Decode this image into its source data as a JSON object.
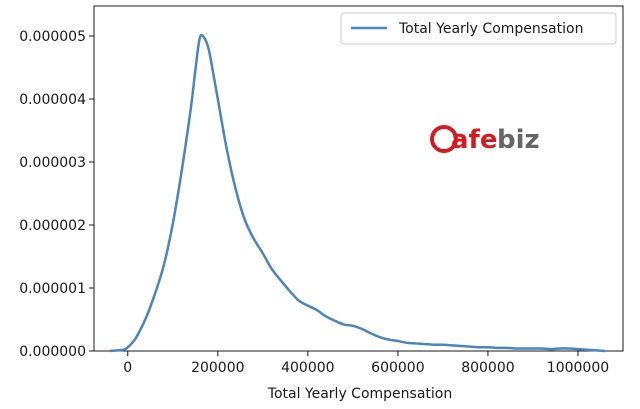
{
  "chart_data": {
    "type": "line",
    "xlabel": "Total Yearly Compensation",
    "ylabel": "",
    "xlim": [
      -75000,
      1100000
    ],
    "ylim": [
      0,
      5e-06
    ],
    "xticks": [
      0,
      200000,
      400000,
      600000,
      800000,
      1000000
    ],
    "xtick_labels": [
      "0",
      "200000",
      "400000",
      "600000",
      "800000",
      "1000000"
    ],
    "yticks": [
      0,
      1e-06,
      2e-06,
      3e-06,
      4e-06,
      5e-06
    ],
    "ytick_labels": [
      "0.000000",
      "0.000001",
      "0.000002",
      "0.000003",
      "0.000004",
      "0.000005"
    ],
    "grid": false,
    "legend_position": "top-right",
    "series": [
      {
        "name": "Total Yearly Compensation",
        "color": "#4c84be",
        "x": [
          -40000,
          -10000,
          0,
          10000,
          20000,
          40000,
          60000,
          80000,
          100000,
          120000,
          140000,
          150000,
          160000,
          170000,
          180000,
          190000,
          200000,
          220000,
          240000,
          260000,
          280000,
          300000,
          320000,
          340000,
          360000,
          380000,
          400000,
          420000,
          440000,
          460000,
          480000,
          500000,
          520000,
          540000,
          560000,
          580000,
          600000,
          620000,
          640000,
          660000,
          680000,
          700000,
          720000,
          740000,
          760000,
          780000,
          800000,
          820000,
          840000,
          860000,
          880000,
          900000,
          920000,
          940000,
          960000,
          980000,
          1000000,
          1020000,
          1040000,
          1060000
        ],
        "values": [
          0.0,
          2e-08,
          6e-08,
          1.3e-07,
          2.3e-07,
          5.2e-07,
          9e-07,
          1.36e-06,
          2.02e-06,
          2.87e-06,
          3.85e-06,
          4.45e-06,
          4.97e-06,
          4.97e-06,
          4.78e-06,
          4.4e-06,
          4e-06,
          3.2e-06,
          2.56e-06,
          2.08e-06,
          1.78e-06,
          1.55e-06,
          1.3e-06,
          1.12e-06,
          9.5e-07,
          8e-07,
          7.2e-07,
          6.5e-07,
          5.5e-07,
          4.8e-07,
          4.2e-07,
          4e-07,
          3.5e-07,
          2.8e-07,
          2.2e-07,
          1.8e-07,
          1.6e-07,
          1.3e-07,
          1.2e-07,
          1.1e-07,
          1e-07,
          1e-07,
          9e-08,
          8e-08,
          7e-08,
          6e-08,
          6e-08,
          5e-08,
          5e-08,
          4e-08,
          4e-08,
          4e-08,
          4e-08,
          3e-08,
          4e-08,
          4e-08,
          3e-08,
          2e-08,
          1e-08,
          0.0
        ]
      }
    ]
  },
  "watermark": {
    "text_part1": "Cafe",
    "text_part2": "biz",
    "color_part1": "#d71920",
    "color_part2": "#666666"
  }
}
